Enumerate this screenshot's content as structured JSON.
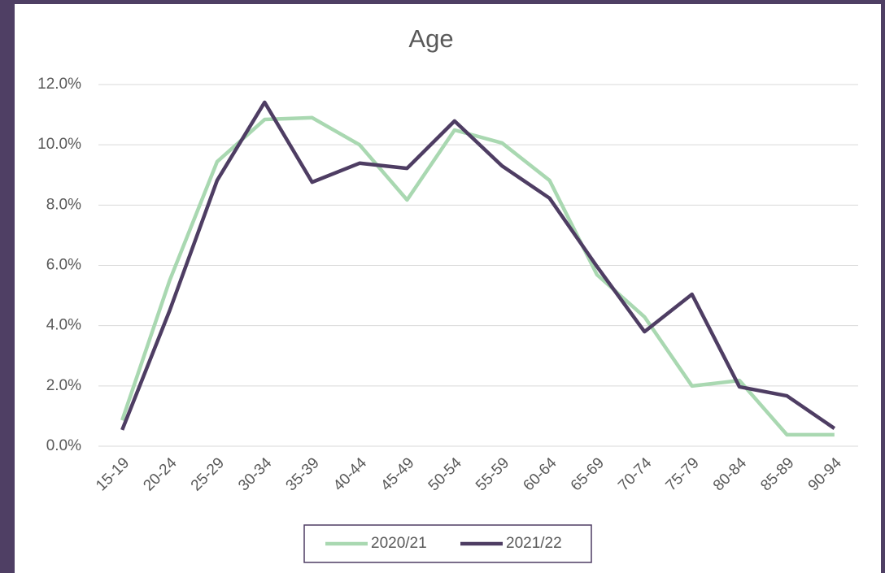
{
  "chart_data": {
    "type": "line",
    "title": "Age",
    "categories": [
      "15-19",
      "20-24",
      "25-29",
      "30-34",
      "35-39",
      "40-44",
      "45-49",
      "50-54",
      "55-59",
      "60-64",
      "65-69",
      "70-74",
      "75-79",
      "80-84",
      "85-89",
      "90-94"
    ],
    "series": [
      {
        "name": "2020/21",
        "color": "#a9d8b1",
        "values": [
          0.86,
          5.5,
          9.44,
          10.84,
          10.9,
          10.0,
          8.17,
          10.49,
          10.06,
          8.82,
          5.69,
          4.29,
          2.0,
          2.18,
          0.38,
          0.38
        ]
      },
      {
        "name": "2021/22",
        "color": "#4e3d63",
        "values": [
          0.54,
          4.5,
          8.82,
          11.41,
          8.76,
          9.39,
          9.22,
          10.79,
          9.3,
          8.23,
          5.96,
          3.8,
          5.04,
          1.97,
          1.67,
          0.59
        ]
      }
    ],
    "ylim": [
      0,
      12
    ],
    "yticks": [
      {
        "value": 0,
        "label": "0.0%"
      },
      {
        "value": 2,
        "label": "2.0%"
      },
      {
        "value": 4,
        "label": "4.0%"
      },
      {
        "value": 6,
        "label": "6.0%"
      },
      {
        "value": 8,
        "label": "8.0%"
      },
      {
        "value": 10,
        "label": "10.0%"
      },
      {
        "value": 12,
        "label": "12.0%"
      }
    ],
    "grid": true,
    "legend": "bottom"
  }
}
